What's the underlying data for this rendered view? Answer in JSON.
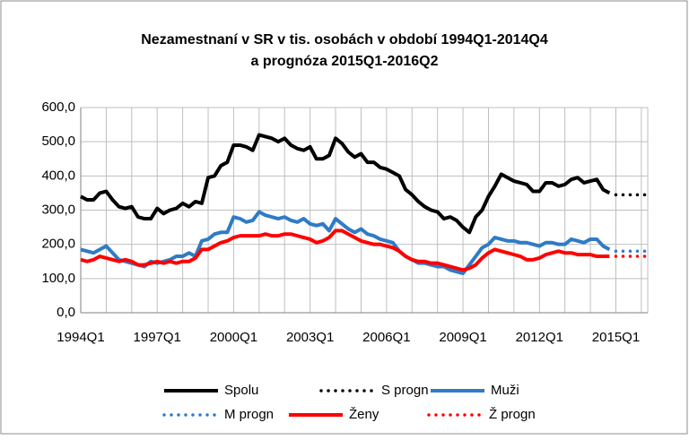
{
  "chart_data": {
    "type": "line",
    "title": "Nezamestnaní  v SR v tis. osobách v období 1994Q1-2014Q4",
    "subtitle": "a prognóza 2015Q1-2016Q2",
    "categories": [
      "1994Q1",
      null,
      null,
      null,
      null,
      null,
      null,
      null,
      null,
      null,
      null,
      null,
      "1997Q1",
      null,
      null,
      null,
      null,
      null,
      null,
      null,
      null,
      null,
      null,
      null,
      "2000Q1",
      null,
      null,
      null,
      null,
      null,
      null,
      null,
      null,
      null,
      null,
      null,
      "2003Q1",
      null,
      null,
      null,
      null,
      null,
      null,
      null,
      null,
      null,
      null,
      null,
      "2006Q1",
      null,
      null,
      null,
      null,
      null,
      null,
      null,
      null,
      null,
      null,
      null,
      "2009Q1",
      null,
      null,
      null,
      null,
      null,
      null,
      null,
      null,
      null,
      null,
      null,
      "2012Q1",
      null,
      null,
      null,
      null,
      null,
      null,
      null,
      null,
      null,
      null,
      null,
      "2015Q1",
      null,
      null,
      null,
      null,
      null
    ],
    "series": [
      {
        "name": "Spolu",
        "color": "#000000",
        "dotted": false,
        "values": [
          340,
          330,
          330,
          350,
          355,
          330,
          310,
          305,
          310,
          280,
          275,
          275,
          305,
          290,
          300,
          305,
          320,
          310,
          325,
          320,
          395,
          400,
          430,
          440,
          490,
          490,
          485,
          475,
          520,
          515,
          510,
          500,
          510,
          490,
          480,
          475,
          485,
          450,
          450,
          460,
          510,
          495,
          470,
          455,
          465,
          440,
          440,
          425,
          420,
          410,
          400,
          360,
          345,
          325,
          310,
          300,
          295,
          275,
          280,
          270,
          250,
          235,
          280,
          300,
          340,
          370,
          405,
          395,
          385,
          380,
          375,
          355,
          355,
          380,
          380,
          370,
          375,
          390,
          395,
          380,
          385,
          390,
          360,
          350,
          null,
          null,
          null,
          null,
          null,
          null
        ]
      },
      {
        "name": "S progn",
        "color": "#000000",
        "dotted": true,
        "values": [
          null,
          null,
          null,
          null,
          null,
          null,
          null,
          null,
          null,
          null,
          null,
          null,
          null,
          null,
          null,
          null,
          null,
          null,
          null,
          null,
          null,
          null,
          null,
          null,
          null,
          null,
          null,
          null,
          null,
          null,
          null,
          null,
          null,
          null,
          null,
          null,
          null,
          null,
          null,
          null,
          null,
          null,
          null,
          null,
          null,
          null,
          null,
          null,
          null,
          null,
          null,
          null,
          null,
          null,
          null,
          null,
          null,
          null,
          null,
          null,
          null,
          null,
          null,
          null,
          null,
          null,
          null,
          null,
          null,
          null,
          null,
          null,
          null,
          null,
          null,
          null,
          null,
          null,
          null,
          null,
          null,
          null,
          null,
          null,
          345,
          345,
          345,
          345,
          345,
          345
        ]
      },
      {
        "name": "Muži",
        "color": "#2f7bc6",
        "dotted": false,
        "values": [
          185,
          180,
          175,
          185,
          195,
          175,
          155,
          150,
          145,
          140,
          135,
          150,
          145,
          150,
          155,
          165,
          165,
          175,
          165,
          210,
          215,
          230,
          235,
          235,
          280,
          275,
          265,
          270,
          295,
          285,
          280,
          275,
          280,
          270,
          265,
          275,
          260,
          255,
          260,
          240,
          275,
          260,
          245,
          235,
          245,
          230,
          225,
          215,
          210,
          205,
          180,
          165,
          155,
          145,
          145,
          140,
          135,
          135,
          125,
          120,
          115,
          140,
          165,
          190,
          200,
          220,
          215,
          210,
          210,
          205,
          205,
          200,
          195,
          205,
          205,
          200,
          200,
          215,
          210,
          205,
          215,
          215,
          195,
          185,
          null,
          null,
          null,
          null,
          null,
          null
        ]
      },
      {
        "name": "M progn",
        "color": "#2f7bc6",
        "dotted": true,
        "values": [
          null,
          null,
          null,
          null,
          null,
          null,
          null,
          null,
          null,
          null,
          null,
          null,
          null,
          null,
          null,
          null,
          null,
          null,
          null,
          null,
          null,
          null,
          null,
          null,
          null,
          null,
          null,
          null,
          null,
          null,
          null,
          null,
          null,
          null,
          null,
          null,
          null,
          null,
          null,
          null,
          null,
          null,
          null,
          null,
          null,
          null,
          null,
          null,
          null,
          null,
          null,
          null,
          null,
          null,
          null,
          null,
          null,
          null,
          null,
          null,
          null,
          null,
          null,
          null,
          null,
          null,
          null,
          null,
          null,
          null,
          null,
          null,
          null,
          null,
          null,
          null,
          null,
          null,
          null,
          null,
          null,
          null,
          null,
          null,
          180,
          180,
          180,
          180,
          180,
          180
        ]
      },
      {
        "name": "Ženy",
        "color": "#ff0000",
        "dotted": false,
        "values": [
          155,
          150,
          155,
          165,
          160,
          155,
          150,
          155,
          150,
          140,
          140,
          145,
          150,
          145,
          150,
          145,
          150,
          150,
          160,
          185,
          185,
          195,
          205,
          210,
          220,
          225,
          225,
          225,
          225,
          230,
          225,
          225,
          230,
          230,
          225,
          220,
          215,
          205,
          210,
          220,
          240,
          240,
          230,
          220,
          210,
          205,
          200,
          200,
          195,
          190,
          180,
          165,
          155,
          150,
          150,
          145,
          145,
          140,
          135,
          130,
          125,
          130,
          140,
          160,
          175,
          185,
          180,
          175,
          170,
          165,
          155,
          155,
          160,
          170,
          175,
          180,
          175,
          175,
          170,
          170,
          170,
          165,
          165,
          165,
          null,
          null,
          null,
          null,
          null,
          null
        ]
      },
      {
        "name": "Ž progn",
        "color": "#ff0000",
        "dotted": true,
        "values": [
          null,
          null,
          null,
          null,
          null,
          null,
          null,
          null,
          null,
          null,
          null,
          null,
          null,
          null,
          null,
          null,
          null,
          null,
          null,
          null,
          null,
          null,
          null,
          null,
          null,
          null,
          null,
          null,
          null,
          null,
          null,
          null,
          null,
          null,
          null,
          null,
          null,
          null,
          null,
          null,
          null,
          null,
          null,
          null,
          null,
          null,
          null,
          null,
          null,
          null,
          null,
          null,
          null,
          null,
          null,
          null,
          null,
          null,
          null,
          null,
          null,
          null,
          null,
          null,
          null,
          null,
          null,
          null,
          null,
          null,
          null,
          null,
          null,
          null,
          null,
          null,
          null,
          null,
          null,
          null,
          null,
          null,
          null,
          null,
          165,
          165,
          165,
          165,
          165,
          165
        ]
      }
    ],
    "ylim": [
      0,
      600
    ],
    "yticks": [
      {
        "value": 0,
        "label": "0,0"
      },
      {
        "value": 100,
        "label": "100,0"
      },
      {
        "value": 200,
        "label": "200,0"
      },
      {
        "value": 300,
        "label": "300,0"
      },
      {
        "value": 400,
        "label": "400,0"
      },
      {
        "value": 500,
        "label": "500,0"
      },
      {
        "value": 600,
        "label": "600,0"
      }
    ],
    "grid": true,
    "legend": "bottom"
  }
}
